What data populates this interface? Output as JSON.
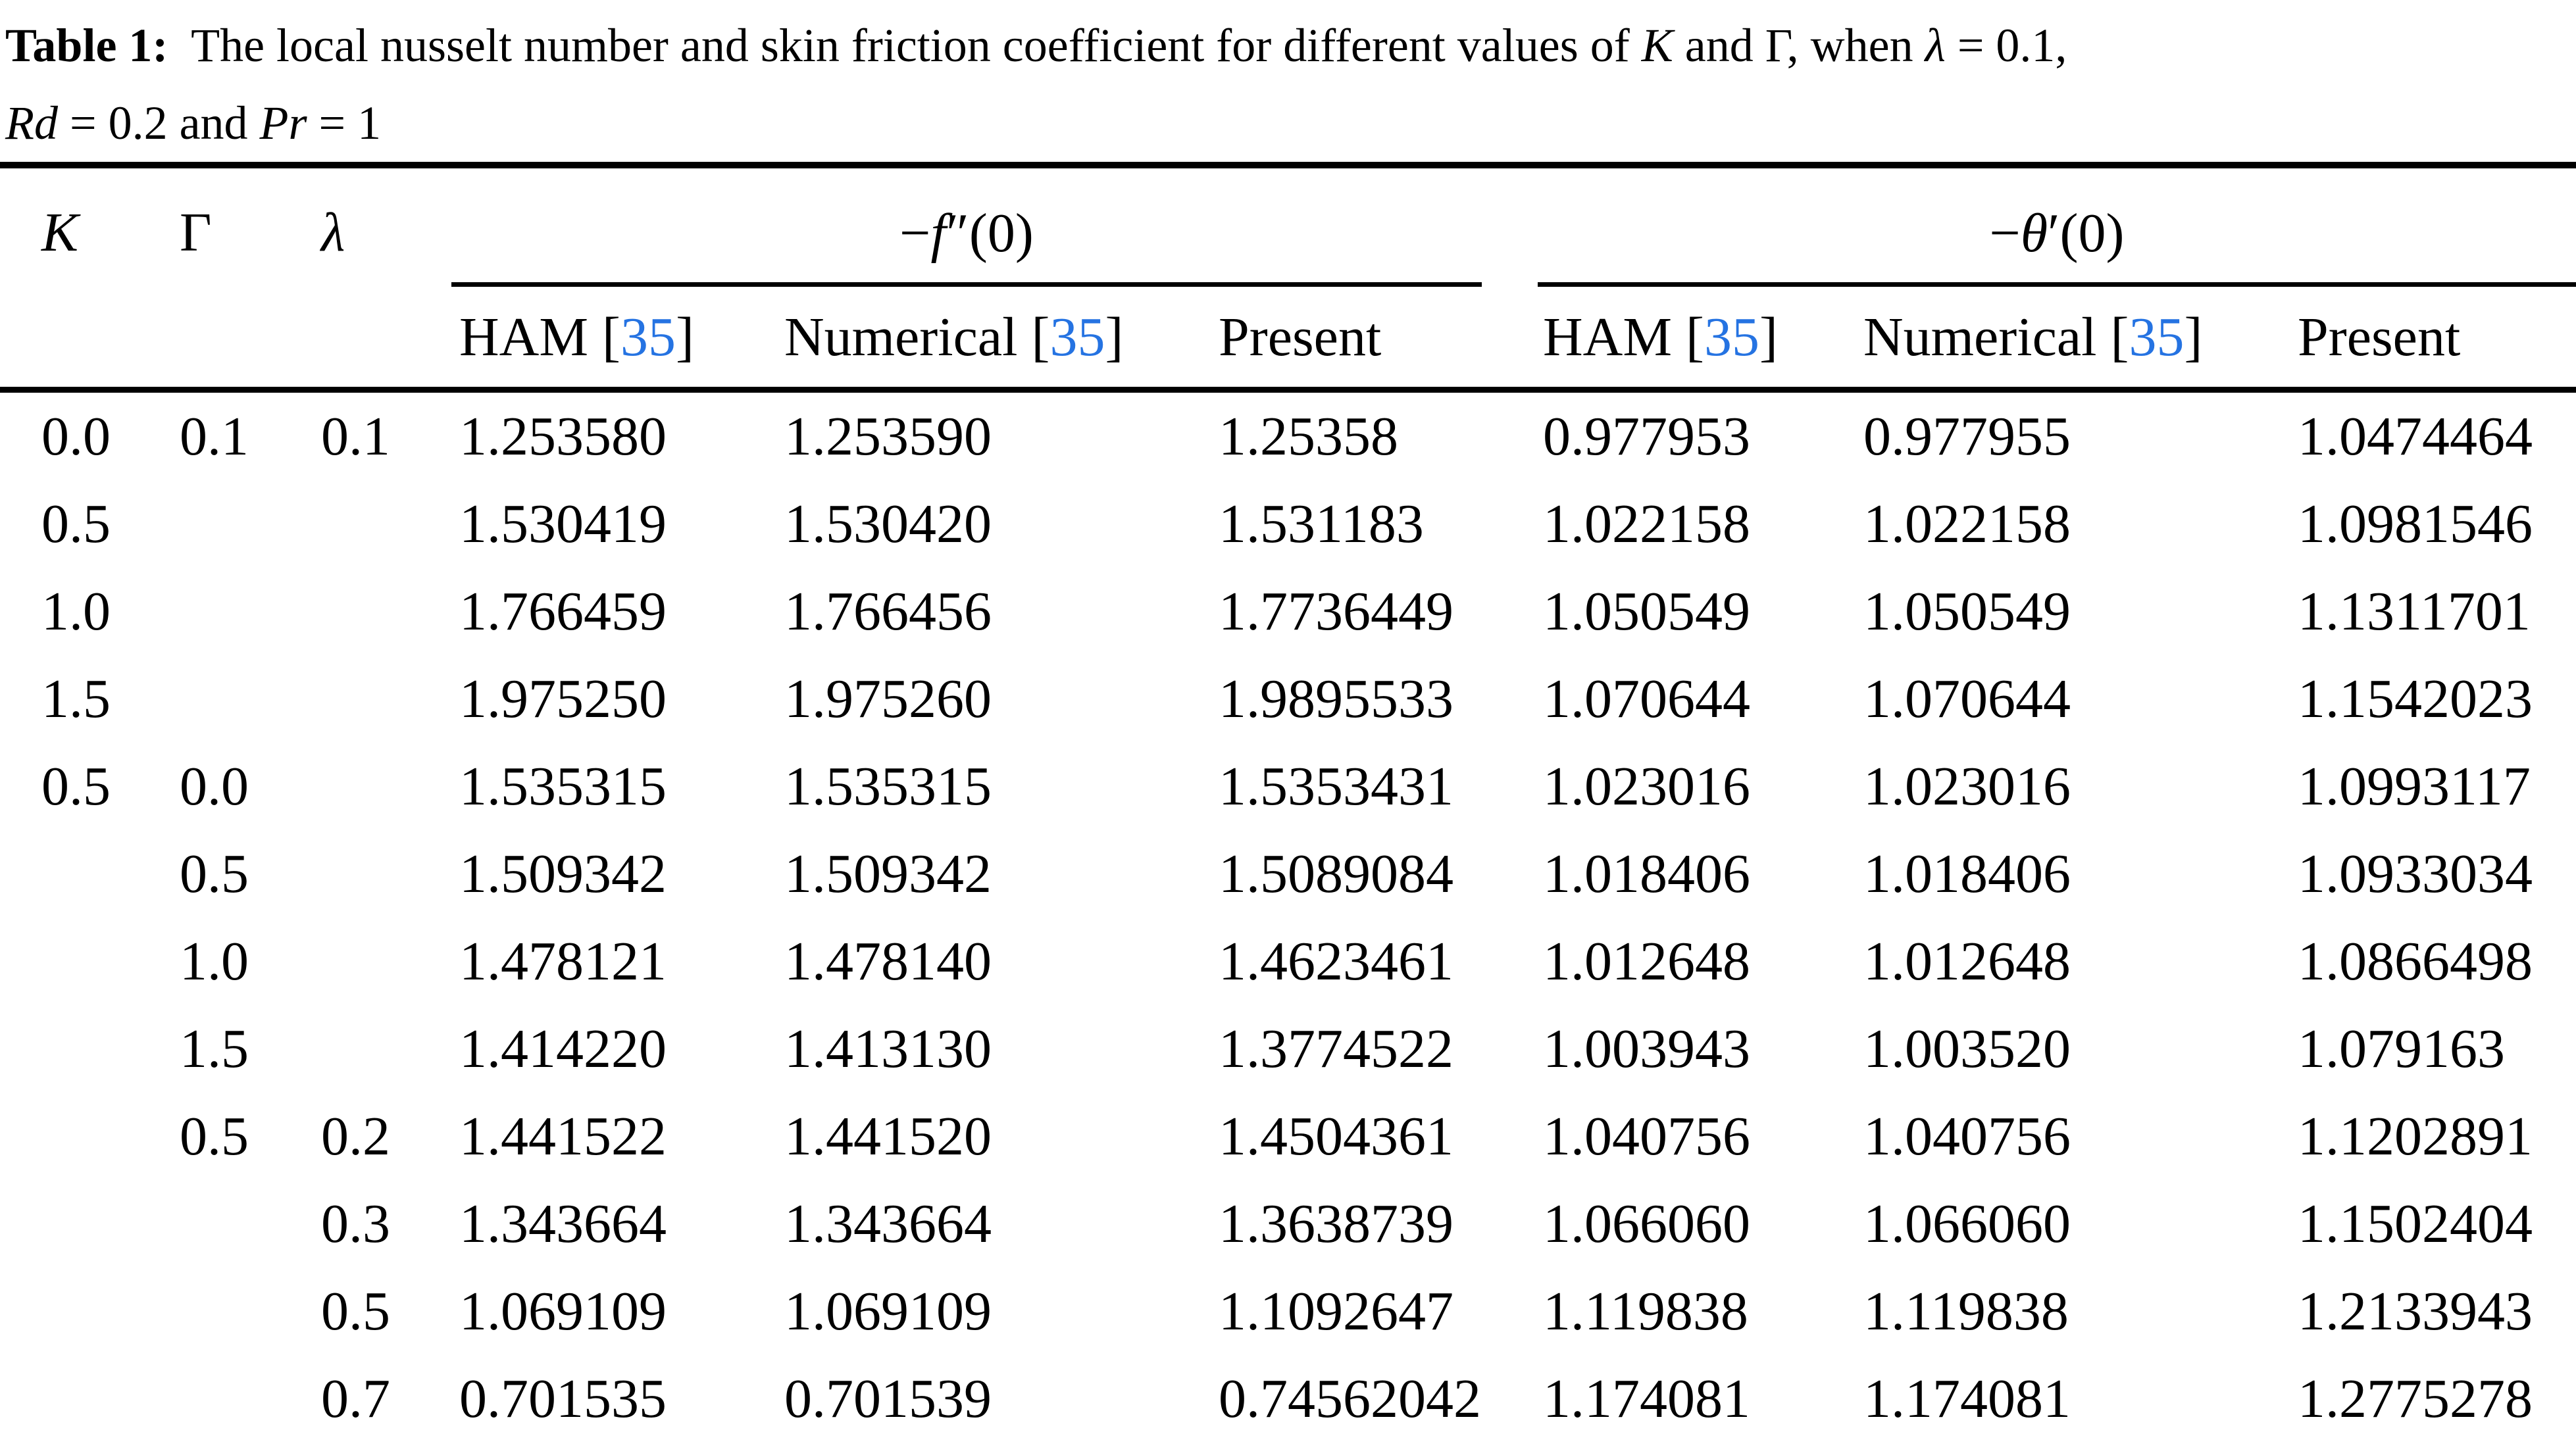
{
  "colors": {
    "text": "#000000",
    "background": "#ffffff",
    "cite_blue": "#2573e2",
    "rule": "#000000"
  },
  "caption": {
    "line1_runs": [
      {
        "t": "Table 1:",
        "s": "bold"
      },
      {
        "t": "  The local nusselt number and skin friction coefficient for different values of ",
        "s": "normal"
      },
      {
        "t": "K",
        "s": "italic"
      },
      {
        "t": " and Γ, when ",
        "s": "normal"
      },
      {
        "t": "λ",
        "s": "italic"
      },
      {
        "t": " = 0.1,",
        "s": "normal"
      }
    ],
    "line2_runs": [
      {
        "t": "Rd",
        "s": "italic"
      },
      {
        "t": " = 0.2 and ",
        "s": "normal"
      },
      {
        "t": "Pr",
        "s": "italic"
      },
      {
        "t": " = 1",
        "s": "normal"
      }
    ]
  },
  "header": {
    "k_runs": [
      {
        "t": "K",
        "s": "italic"
      }
    ],
    "gamma_runs": [
      {
        "t": "Γ",
        "s": "normal"
      }
    ],
    "lambda_runs": [
      {
        "t": "λ",
        "s": "italic"
      }
    ],
    "group_f_runs": [
      {
        "t": "−",
        "s": "normal"
      },
      {
        "t": "f",
        "s": "italic"
      },
      {
        "t": "″(0)",
        "s": "normal"
      }
    ],
    "group_theta_runs": [
      {
        "t": "−",
        "s": "normal"
      },
      {
        "t": "θ",
        "s": "italic"
      },
      {
        "t": "′(0)",
        "s": "normal"
      }
    ],
    "ham_runs": [
      {
        "t": "HAM [",
        "s": "normal"
      },
      {
        "t": "35",
        "s": "cite"
      },
      {
        "t": "]",
        "s": "normal"
      }
    ],
    "numerical_runs": [
      {
        "t": "Numerical [",
        "s": "normal"
      },
      {
        "t": "35",
        "s": "cite"
      },
      {
        "t": "]",
        "s": "normal"
      }
    ],
    "present_label": "Present"
  },
  "table": {
    "group1_label": "−f″(0)",
    "group2_label": "−θ′(0)",
    "columns": [
      "K",
      "Γ",
      "λ",
      "HAM [35]",
      "Numerical [35]",
      "Present",
      "HAM [35]",
      "Numerical [35]",
      "Present"
    ],
    "rows": [
      [
        "0.0",
        "0.1",
        "0.1",
        "1.253580",
        "1.253590",
        "1.25358",
        "0.977953",
        "0.977955",
        "1.0474464"
      ],
      [
        "0.5",
        "",
        "",
        "1.530419",
        "1.530420",
        "1.531183",
        "1.022158",
        "1.022158",
        "1.0981546"
      ],
      [
        "1.0",
        "",
        "",
        "1.766459",
        "1.766456",
        "1.7736449",
        "1.050549",
        "1.050549",
        "1.1311701"
      ],
      [
        "1.5",
        "",
        "",
        "1.975250",
        "1.975260",
        "1.9895533",
        "1.070644",
        "1.070644",
        "1.1542023"
      ],
      [
        "0.5",
        "0.0",
        "",
        "1.535315",
        "1.535315",
        "1.5353431",
        "1.023016",
        "1.023016",
        "1.0993117"
      ],
      [
        "",
        "0.5",
        "",
        "1.509342",
        "1.509342",
        "1.5089084",
        "1.018406",
        "1.018406",
        "1.0933034"
      ],
      [
        "",
        "1.0",
        "",
        "1.478121",
        "1.478140",
        "1.4623461",
        "1.012648",
        "1.012648",
        "1.0866498"
      ],
      [
        "",
        "1.5",
        "",
        "1.414220",
        "1.413130",
        "1.3774522",
        "1.003943",
        "1.003520",
        "1.079163"
      ],
      [
        "",
        "0.5",
        "0.2",
        "1.441522",
        "1.441520",
        "1.4504361",
        "1.040756",
        "1.040756",
        "1.1202891"
      ],
      [
        "",
        "",
        "0.3",
        "1.343664",
        "1.343664",
        "1.3638739",
        "1.066060",
        "1.066060",
        "1.1502404"
      ],
      [
        "",
        "",
        "0.5",
        "1.069109",
        "1.069109",
        "1.1092647",
        "1.119838",
        "1.119838",
        "1.2133943"
      ],
      [
        "",
        "",
        "0.7",
        "0.701535",
        "0.701539",
        "0.74562042",
        "1.174081",
        "1.174081",
        "1.2775278"
      ]
    ]
  }
}
